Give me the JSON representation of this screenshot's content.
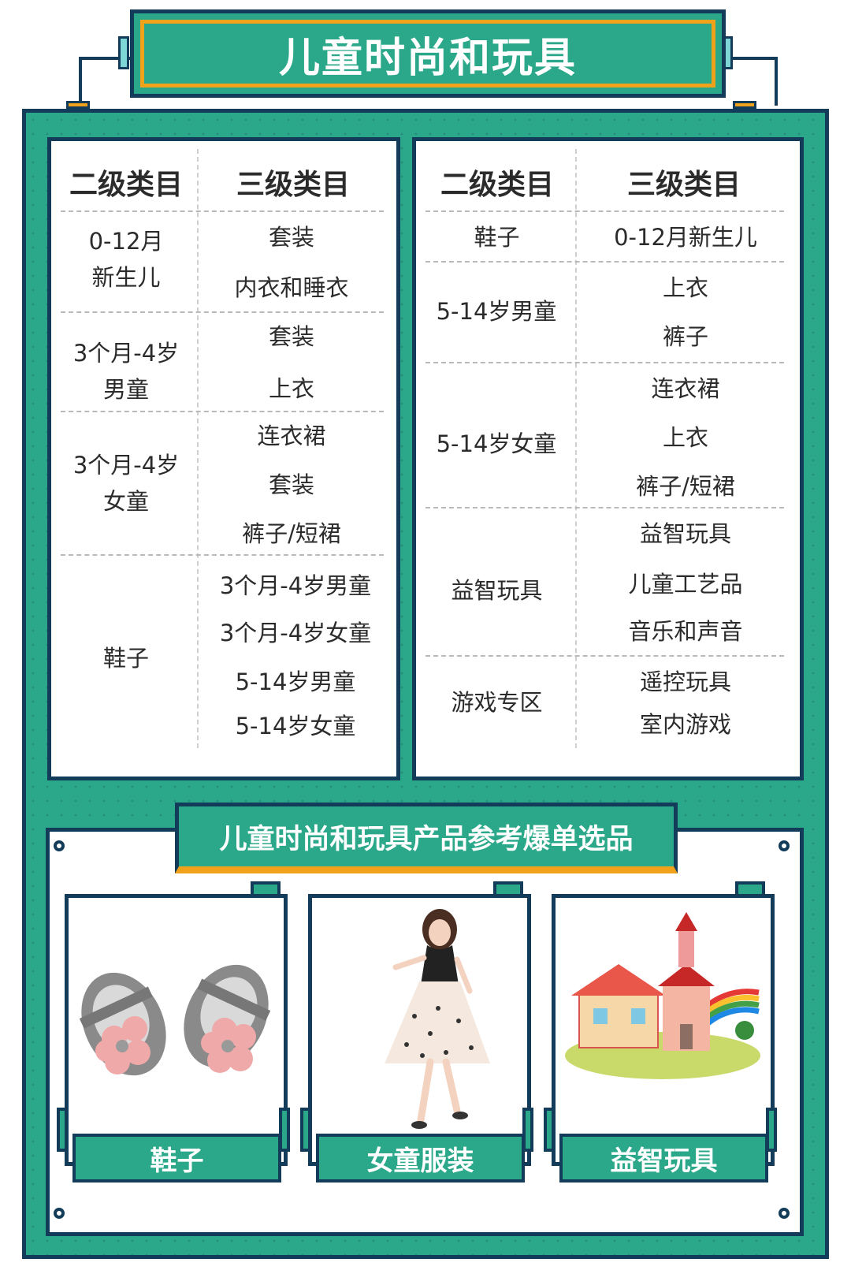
{
  "title": "儿童时尚和玩具",
  "left_table": {
    "headers": [
      "二级类目",
      "三级类目"
    ],
    "groups": [
      {
        "level2": "0-12月\n新生儿",
        "level3": [
          "套装",
          "内衣和睡衣"
        ]
      },
      {
        "level2": "3个月-4岁\n男童",
        "level3": [
          "套装",
          "上衣"
        ]
      },
      {
        "level2": "3个月-4岁\n女童",
        "level3": [
          "连衣裙",
          "套装",
          "裤子/短裙"
        ]
      },
      {
        "level2": "鞋子",
        "level3": [
          "3个月-4岁男童",
          "3个月-4岁女童",
          "5-14岁男童",
          "5-14岁女童"
        ]
      }
    ]
  },
  "right_table": {
    "headers": [
      "二级类目",
      "三级类目"
    ],
    "groups": [
      {
        "level2": "鞋子",
        "level3": [
          "0-12月新生儿"
        ]
      },
      {
        "level2": "5-14岁男童",
        "level3": [
          "上衣",
          "裤子"
        ]
      },
      {
        "level2": "5-14岁女童",
        "level3": [
          "连衣裙",
          "上衣",
          "裤子/短裙"
        ]
      },
      {
        "level2": "益智玩具",
        "level3": [
          "益智玩具",
          "儿童工艺品",
          "音乐和声音"
        ]
      },
      {
        "level2": "游戏专区",
        "level3": [
          "遥控玩具",
          "室内游戏"
        ]
      }
    ]
  },
  "showcase": {
    "title": "儿童时尚和玩具产品参考爆单选品",
    "products": [
      {
        "label": "鞋子",
        "image": "baby-shoes-photo"
      },
      {
        "label": "女童服装",
        "image": "girl-dress-photo"
      },
      {
        "label": "益智玩具",
        "image": "toy-house-puzzle-photo"
      }
    ]
  },
  "colors": {
    "teal": "#2aa889",
    "navy": "#123c5a",
    "orange": "#f0a21b"
  }
}
